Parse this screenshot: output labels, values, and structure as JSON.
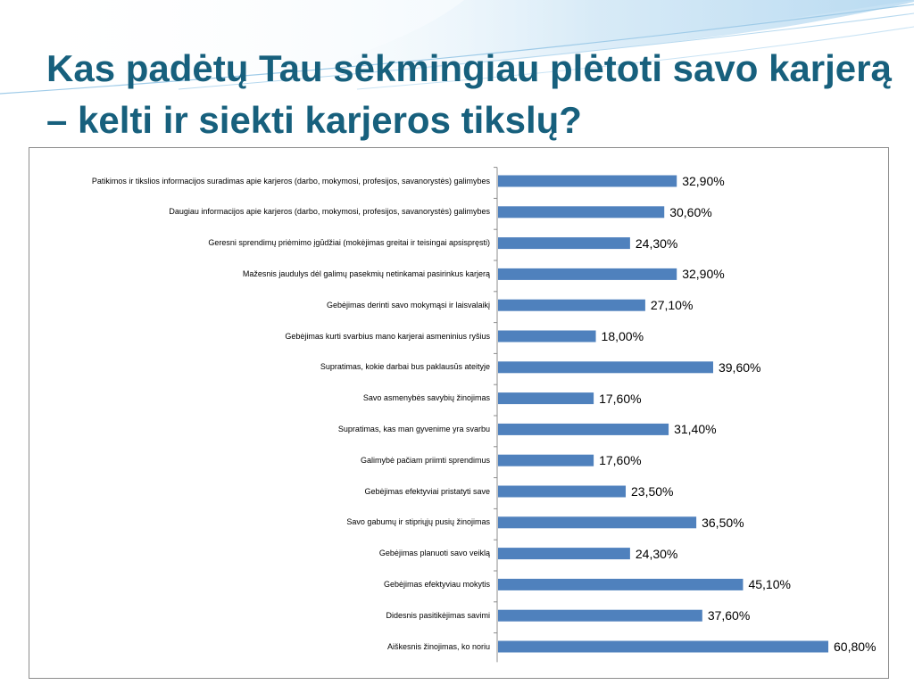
{
  "slide": {
    "title": "Kas padėtų Tau sėkmingiau plėtoti savo karjerą – kelti ir siekti karjeros tikslų?",
    "accent_color": "#17607d",
    "bar_color": "#4f81bd"
  },
  "chart_data": {
    "type": "bar",
    "orientation": "horizontal",
    "title": "",
    "xlabel": "",
    "ylabel": "",
    "xlim": [
      0,
      65
    ],
    "grid": false,
    "legend": "none",
    "categories": [
      "Patikimos ir tikslios informacijos suradimas apie karjeros (darbo, mokymosi, profesijos, savanorystės) galimybes",
      "Daugiau informacijos apie karjeros (darbo, mokymosi, profesijos, savanorystės) galimybes",
      "Geresni sprendimų priėmimo įgūdžiai (mokėjimas greitai ir teisingai apsispręsti)",
      "Mažesnis jaudulys dėl galimų pasekmių netinkamai pasirinkus karjerą",
      "Gebėjimas derinti savo mokymąsi ir laisvalaikį",
      "Gebėjimas kurti svarbius mano karjerai asmeninius ryšius",
      "Supratimas, kokie darbai bus paklausūs ateityje",
      "Savo asmenybės savybių žinojimas",
      "Supratimas, kas man gyvenime yra svarbu",
      "Galimybė pačiam priimti sprendimus",
      "Gebėjimas efektyviai pristatyti save",
      "Savo gabumų ir stipriųjų pusių žinojimas",
      "Gebėjimas planuoti savo veiklą",
      "Gebėjimas efektyviau mokytis",
      "Didesnis pasitikėjimas savimi",
      "Aiškesnis žinojimas, ko noriu"
    ],
    "values": [
      32.9,
      30.6,
      24.3,
      32.9,
      27.1,
      18.0,
      39.6,
      17.6,
      31.4,
      17.6,
      23.5,
      36.5,
      24.3,
      45.1,
      37.6,
      60.8
    ],
    "value_labels": [
      "32,90%",
      "30,60%",
      "24,30%",
      "32,90%",
      "27,10%",
      "18,00%",
      "39,60%",
      "17,60%",
      "31,40%",
      "17,60%",
      "23,50%",
      "36,50%",
      "24,30%",
      "45,10%",
      "37,60%",
      "60,80%"
    ]
  }
}
